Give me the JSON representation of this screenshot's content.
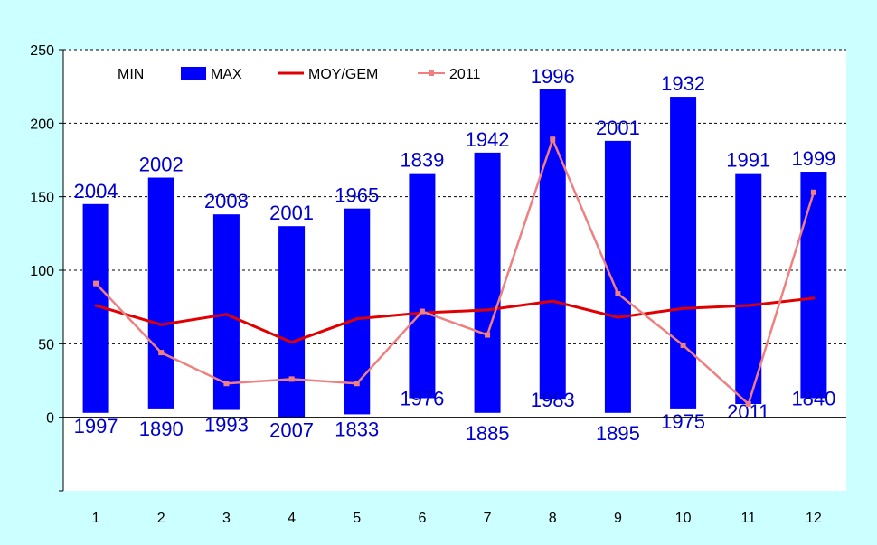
{
  "chart_data": {
    "type": "bar",
    "categories": [
      "1",
      "2",
      "3",
      "4",
      "5",
      "6",
      "7",
      "8",
      "9",
      "10",
      "11",
      "12"
    ],
    "ylim": [
      -50,
      250
    ],
    "yticks": [
      0,
      50,
      100,
      150,
      200,
      250
    ],
    "grid": true,
    "legend_position": "top-left",
    "colors": {
      "plot_bg": "#ffffff",
      "page_bg": "#ccffff",
      "max_bar": "#0000ff",
      "moy": "#e00000",
      "y2011": "#f08080",
      "year_text": "#0000cc"
    },
    "series": [
      {
        "name": "MIN",
        "values": [
          3,
          6,
          5,
          0,
          2,
          13,
          3,
          12,
          3,
          6,
          9,
          13
        ],
        "year_labels": [
          "1997",
          "1890",
          "1993",
          "2007",
          "1833",
          "1976",
          "1885",
          "1983",
          "1895",
          "1975",
          "2011",
          "1840"
        ]
      },
      {
        "name": "MAX",
        "values": [
          145,
          163,
          138,
          130,
          142,
          166,
          180,
          223,
          188,
          218,
          166,
          167
        ],
        "year_labels": [
          "2004",
          "2002",
          "2008",
          "2001",
          "1965",
          "1839",
          "1942",
          "1996",
          "2001",
          "1932",
          "1991",
          "1999"
        ]
      },
      {
        "name": "MOY/GEM",
        "values": [
          76,
          63,
          70,
          51,
          67,
          71,
          73,
          79,
          68,
          74,
          76,
          81
        ]
      },
      {
        "name": "2011",
        "values": [
          91,
          44,
          23,
          26,
          23,
          72,
          56,
          189,
          84,
          49,
          9,
          153
        ]
      }
    ]
  }
}
